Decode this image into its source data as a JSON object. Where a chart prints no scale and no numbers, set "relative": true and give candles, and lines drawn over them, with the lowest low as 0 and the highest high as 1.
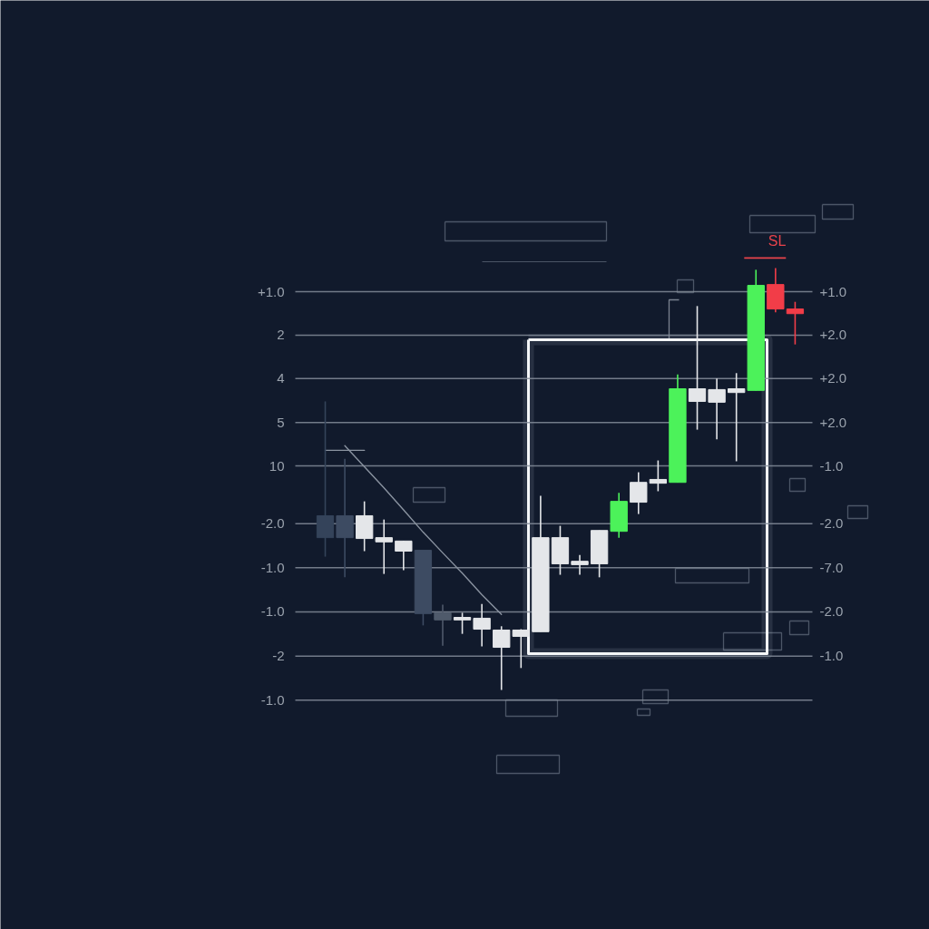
{
  "chart_data": {
    "type": "candlestick",
    "relative": true,
    "categories": [
      null,
      null,
      null,
      null,
      null,
      null,
      null,
      null,
      null,
      null,
      null,
      null,
      null,
      null,
      null,
      null,
      null,
      null,
      null,
      null,
      null,
      null,
      null,
      null,
      null
    ],
    "ohlc": [
      [
        0.413,
        0.684,
        0.316,
        0.361
      ],
      [
        0.413,
        0.548,
        0.267,
        0.361
      ],
      [
        0.359,
        0.447,
        0.329,
        0.413
      ],
      [
        0.351,
        0.404,
        0.275,
        0.361
      ],
      [
        0.329,
        0.353,
        0.284,
        0.353
      ],
      [
        0.331,
        0.331,
        0.153,
        0.181
      ],
      [
        0.183,
        0.202,
        0.105,
        0.166
      ],
      [
        0.166,
        0.183,
        0.133,
        0.172
      ],
      [
        0.144,
        0.204,
        0.103,
        0.17
      ],
      [
        0.101,
        0.151,
        0.0,
        0.142
      ],
      [
        0.127,
        0.144,
        0.052,
        0.142
      ],
      [
        0.138,
        0.46,
        0.138,
        0.361
      ],
      [
        0.299,
        0.389,
        0.273,
        0.361
      ],
      [
        0.297,
        0.32,
        0.273,
        0.305
      ],
      [
        0.299,
        0.378,
        0.267,
        0.378
      ],
      [
        0.376,
        0.467,
        0.361,
        0.447
      ],
      [
        0.445,
        0.516,
        0.417,
        0.492
      ],
      [
        0.49,
        0.544,
        0.471,
        0.499
      ],
      [
        0.492,
        0.748,
        0.492,
        0.714
      ],
      [
        0.684,
        0.91,
        0.617,
        0.714
      ],
      [
        0.682,
        0.738,
        0.594,
        0.712
      ],
      [
        0.705,
        0.751,
        0.542,
        0.714
      ],
      [
        0.71,
        0.996,
        0.71,
        0.959
      ],
      [
        0.961,
        1.0,
        0.895,
        0.903
      ],
      [
        0.903,
        0.92,
        0.819,
        0.892
      ]
    ],
    "colors": [
      "#34435a",
      "#3d4b62",
      "#e4e6e9",
      "#e4e6e9",
      "#e4e6e9",
      "#3d4b62",
      "#4f5a6b",
      "#e4e6e9",
      "#e4e6e9",
      "#e4e6e9",
      "#e4e6e9",
      "#e4e6e9",
      "#e4e6e9",
      "#e4e6e9",
      "#e4e6e9",
      "#4cf25a",
      "#e4e6e9",
      "#e4e6e9",
      "#4cf25a",
      "#e4e6e9",
      "#e4e6e9",
      "#e4e6e9",
      "#4cf25a",
      "#f23d48",
      "#f23d48"
    ],
    "series": [
      {
        "type": "line",
        "color": "#8a93a0",
        "values": [
          0.568,
          0.568,
          0.568,
          null,
          null,
          null,
          null,
          null,
          null,
          null,
          null,
          null,
          null,
          null,
          null,
          null,
          null,
          null,
          null,
          null,
          null,
          null,
          null,
          null,
          null
        ]
      },
      {
        "type": "line",
        "color": "#8a93a0",
        "values": [
          null,
          0.579,
          0.529,
          0.479,
          0.427,
          0.374,
          0.325,
          0.277,
          0.226,
          0.179,
          null,
          null,
          null,
          null,
          null,
          null,
          null,
          null,
          null,
          null,
          null,
          null,
          null,
          null,
          null
        ]
      }
    ],
    "ref_lines": [
      {
        "axis": "y",
        "value": 0.944
      },
      {
        "axis": "y",
        "value": 0.841
      },
      {
        "axis": "y",
        "value": 0.738
      },
      {
        "axis": "y",
        "value": 0.634
      },
      {
        "axis": "y",
        "value": 0.531
      },
      {
        "axis": "y",
        "value": 0.394
      },
      {
        "axis": "y",
        "value": 0.29
      },
      {
        "axis": "y",
        "value": 0.185
      },
      {
        "axis": "y",
        "value": 0.08
      },
      {
        "axis": "y",
        "value": -0.024
      },
      {
        "axis": "y",
        "value": 1.024,
        "label": "SL",
        "color": "#e8434b"
      }
    ],
    "annotations": [
      "+1.0",
      "2",
      "4",
      "5",
      "10",
      "-2.0",
      "-1.0",
      "-1.0",
      "-2",
      "-1.0",
      "+1.0",
      "+2.0",
      "+2.0",
      "+2.0",
      "-1.0",
      "-2.0",
      "-7.0",
      "-2.0",
      "-1.0"
    ]
  }
}
